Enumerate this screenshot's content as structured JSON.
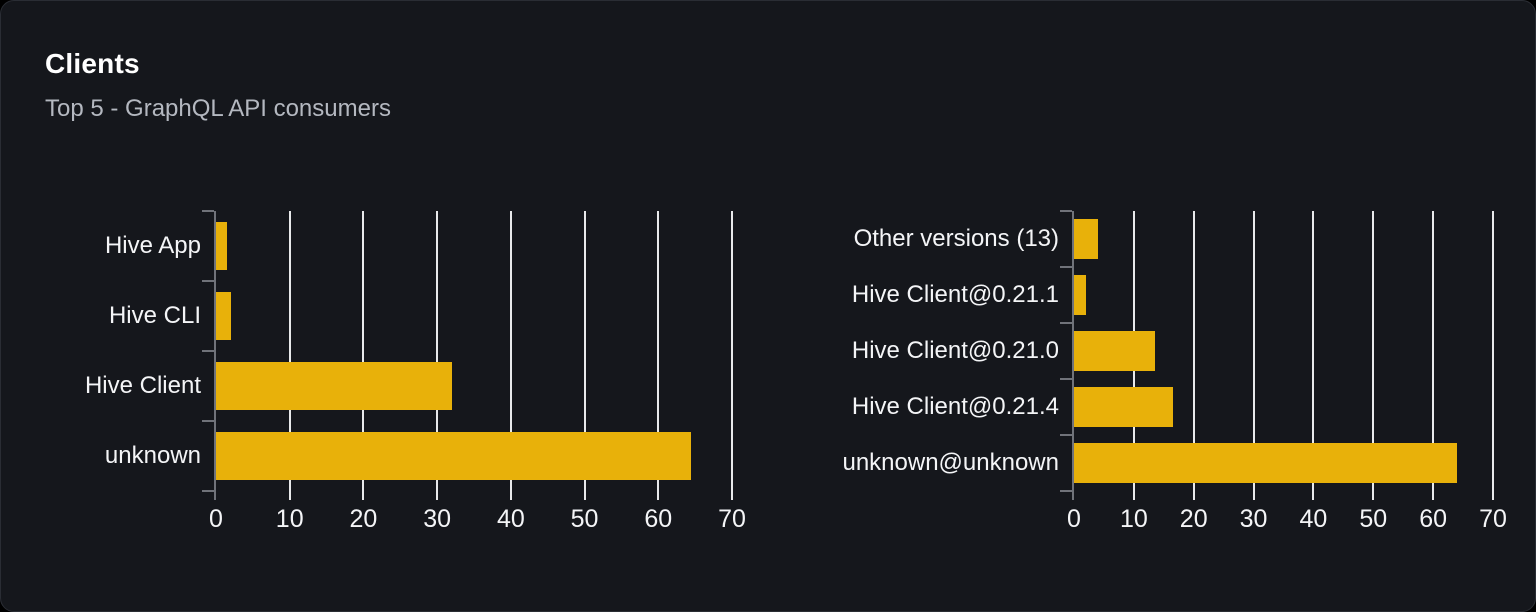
{
  "card": {
    "title": "Clients",
    "subtitle": "Top 5 - GraphQL API consumers"
  },
  "colors": {
    "background": "#15171c",
    "card_border": "#2a2d34",
    "bar": "#e8b10a",
    "grid": "#e8e9eb",
    "axis": "#70737a",
    "title_text": "#ffffff",
    "subtitle_text": "#b4b8c0",
    "label_text": "#f4f5f7"
  },
  "chart_data": [
    {
      "type": "bar",
      "orientation": "horizontal",
      "name": "clients-by-name",
      "categories": [
        "Hive App",
        "Hive CLI",
        "Hive Client",
        "unknown"
      ],
      "values": [
        1.5,
        2,
        32,
        64.5
      ],
      "xlim": [
        0,
        70
      ],
      "xticks": [
        0,
        10,
        20,
        30,
        40,
        50,
        60,
        70
      ],
      "grid": true,
      "legend": "none",
      "xlabel": "",
      "ylabel": ""
    },
    {
      "type": "bar",
      "orientation": "horizontal",
      "name": "clients-by-version",
      "categories": [
        "Other versions (13)",
        "Hive Client@0.21.1",
        "Hive Client@0.21.0",
        "Hive Client@0.21.4",
        "unknown@unknown"
      ],
      "values": [
        4,
        2,
        13.5,
        16.5,
        64
      ],
      "xlim": [
        0,
        70
      ],
      "xticks": [
        0,
        10,
        20,
        30,
        40,
        50,
        60,
        70
      ],
      "grid": true,
      "legend": "none",
      "xlabel": "",
      "ylabel": ""
    }
  ]
}
